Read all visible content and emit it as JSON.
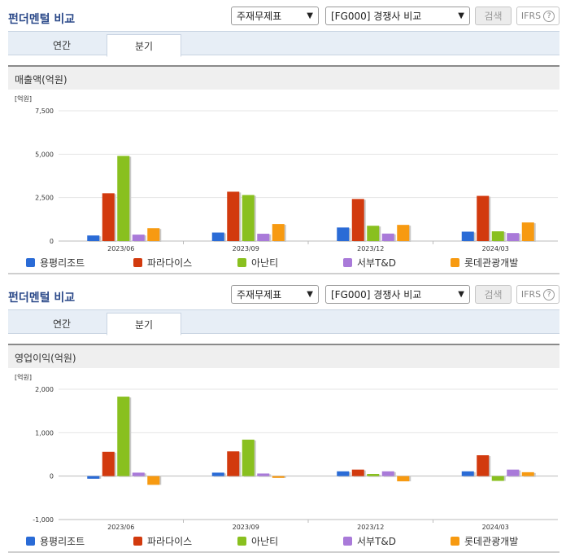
{
  "sections": [
    {
      "title": "펀더멘털 비교",
      "type_select": "주재무제표",
      "company_select": "[FG000] 경쟁사 비교",
      "search_label": "검색",
      "ifrs_label": "IFRS",
      "ifrs_help": "?",
      "tabs": [
        {
          "label": "연간"
        },
        {
          "label": "분기"
        }
      ],
      "active_tab": 1,
      "chart_title": "매출액(억원)"
    },
    {
      "title": "펀더멘털 비교",
      "type_select": "주재무제표",
      "company_select": "[FG000] 경쟁사 비교",
      "search_label": "검색",
      "ifrs_label": "IFRS",
      "ifrs_help": "?",
      "tabs": [
        {
          "label": "연간"
        },
        {
          "label": "분기"
        }
      ],
      "active_tab": 1,
      "chart_title": "영업이익(억원)"
    }
  ],
  "colors": [
    "#2a6bd6",
    "#d23a0e",
    "#89c01f",
    "#a97ad9",
    "#f79a11"
  ],
  "chart_data": [
    {
      "type": "bar",
      "title": "매출액(억원)",
      "unit_label": "[억원]",
      "categories": [
        "2023/06",
        "2023/09",
        "2023/12",
        "2024/03"
      ],
      "ylim": [
        0,
        7500
      ],
      "yticks": [
        0,
        2500,
        5000,
        7500
      ],
      "ytick_labels": [
        "0",
        "2,500",
        "5,000",
        "7,500"
      ],
      "grid": true,
      "legend_position": "bottom",
      "series": [
        {
          "name": "용평리조트",
          "values": [
            320,
            490,
            780,
            540
          ]
        },
        {
          "name": "파라다이스",
          "values": [
            2750,
            2840,
            2420,
            2600
          ]
        },
        {
          "name": "아난티",
          "values": [
            4900,
            2650,
            880,
            560
          ]
        },
        {
          "name": "서부T&D",
          "values": [
            370,
            420,
            430,
            460
          ]
        },
        {
          "name": "롯데관광개발",
          "values": [
            740,
            980,
            930,
            1070
          ]
        }
      ]
    },
    {
      "type": "bar",
      "title": "영업이익(억원)",
      "unit_label": "[억원]",
      "categories": [
        "2023/06",
        "2023/09",
        "2023/12",
        "2024/03"
      ],
      "ylim": [
        -1000,
        2000
      ],
      "yticks": [
        -1000,
        0,
        1000,
        2000
      ],
      "ytick_labels": [
        "-1,000",
        "0",
        "1,000",
        "2,000"
      ],
      "grid": true,
      "legend_position": "bottom",
      "series": [
        {
          "name": "용평리조트",
          "values": [
            -60,
            80,
            110,
            110
          ]
        },
        {
          "name": "파라다이스",
          "values": [
            560,
            570,
            150,
            480
          ]
        },
        {
          "name": "아난티",
          "values": [
            1830,
            840,
            50,
            -110
          ]
        },
        {
          "name": "서부T&D",
          "values": [
            80,
            60,
            110,
            150
          ]
        },
        {
          "name": "롯데관광개발",
          "values": [
            -200,
            -40,
            -120,
            90
          ]
        }
      ]
    }
  ]
}
